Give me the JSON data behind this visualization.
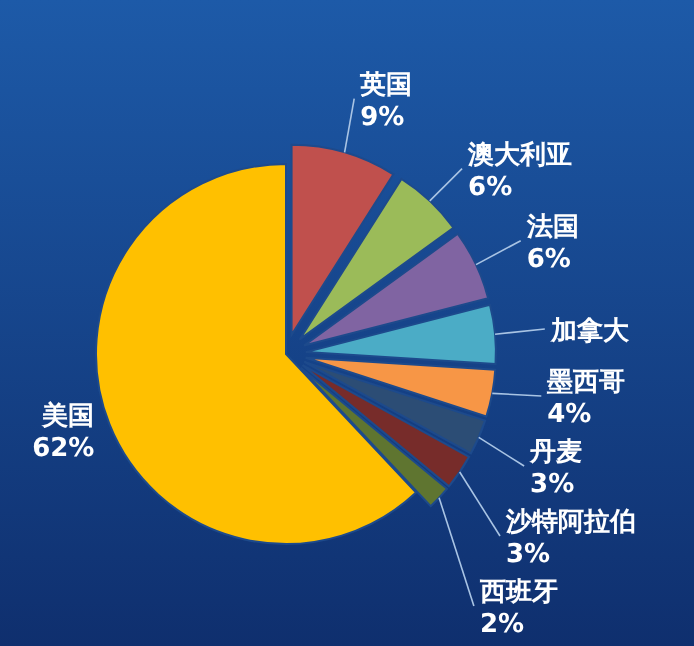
{
  "chart_data": {
    "type": "pie",
    "categories": [
      "英国",
      "澳大利亚",
      "法国",
      "加拿大",
      "墨西哥",
      "丹麦",
      "沙特阿拉伯",
      "西班牙",
      "美国"
    ],
    "values": [
      9,
      6,
      6,
      5,
      4,
      3,
      3,
      2,
      62
    ],
    "value_labels": [
      "9%",
      "6%",
      "6%",
      null,
      "4%",
      "3%",
      "3%",
      "2%",
      "62%"
    ],
    "colors": [
      "#c0504d",
      "#9bbb59",
      "#8064a2",
      "#4bacc6",
      "#f79646",
      "#2c4d75",
      "#772c2a",
      "#5f7530",
      "#ffc000"
    ]
  }
}
